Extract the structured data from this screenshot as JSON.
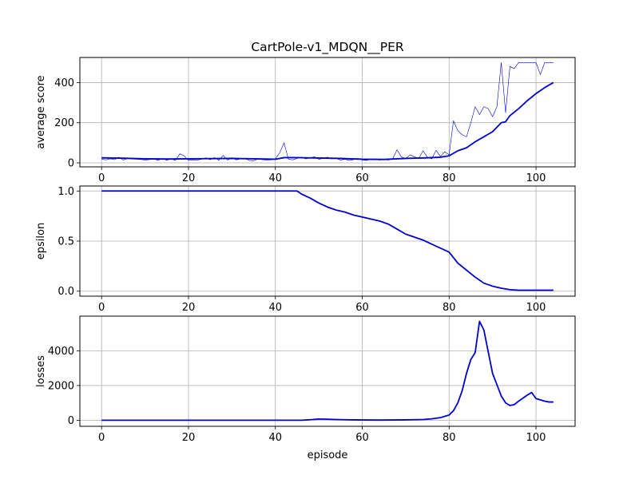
{
  "chart_data": {
    "type": "line",
    "title": "CartPole-v1_MDQN__PER",
    "xlabel": "episode",
    "x_ticks": [
      0,
      20,
      40,
      60,
      80,
      100
    ],
    "xlim": [
      -5,
      109
    ],
    "grid": true,
    "panels": [
      {
        "id": "score",
        "ylabel": "average score",
        "ylim": [
          -20,
          525
        ],
        "y_ticks": [
          0,
          200,
          400
        ],
        "series": [
          {
            "style": "raw",
            "color": "#0000cc",
            "x": [
              0,
              1,
              2,
              3,
              4,
              5,
              6,
              7,
              8,
              9,
              10,
              11,
              12,
              13,
              14,
              15,
              16,
              17,
              18,
              19,
              20,
              21,
              22,
              23,
              24,
              25,
              26,
              27,
              28,
              29,
              30,
              31,
              32,
              33,
              34,
              35,
              36,
              37,
              38,
              39,
              40,
              41,
              42,
              43,
              44,
              45,
              46,
              47,
              48,
              49,
              50,
              51,
              52,
              53,
              54,
              55,
              56,
              57,
              58,
              59,
              60,
              61,
              62,
              63,
              64,
              65,
              66,
              67,
              68,
              69,
              70,
              71,
              72,
              73,
              74,
              75,
              76,
              77,
              78,
              79,
              80,
              81,
              82,
              83,
              84,
              85,
              86,
              87,
              88,
              89,
              90,
              91,
              92,
              93,
              94,
              95,
              96,
              97,
              98,
              99,
              100,
              101,
              102,
              103,
              104
            ],
            "y": [
              18,
              15,
              20,
              16,
              28,
              14,
              22,
              19,
              18,
              17,
              14,
              16,
              20,
              12,
              22,
              13,
              20,
              12,
              45,
              35,
              12,
              15,
              14,
              18,
              25,
              16,
              26,
              13,
              37,
              14,
              26,
              15,
              20,
              22,
              12,
              10,
              20,
              16,
              14,
              15,
              20,
              50,
              100,
              18,
              15,
              22,
              28,
              20,
              25,
              30,
              18,
              22,
              28,
              20,
              22,
              14,
              18,
              12,
              16,
              22,
              14,
              12,
              18,
              16,
              14,
              16,
              14,
              20,
              65,
              30,
              20,
              40,
              30,
              22,
              60,
              28,
              20,
              62,
              32,
              55,
              40,
              210,
              160,
              140,
              130,
              200,
              280,
              240,
              280,
              270,
              230,
              280,
              500,
              250,
              480,
              470,
              500,
              500,
              500,
              500,
              500,
              440,
              500,
              500,
              500
            ]
          },
          {
            "style": "mean",
            "color": "#0000cc",
            "x": [
              0,
              5,
              10,
              15,
              20,
              25,
              30,
              35,
              40,
              42,
              45,
              50,
              55,
              60,
              65,
              70,
              75,
              78,
              80,
              82,
              84,
              86,
              88,
              90,
              92,
              93,
              94,
              96,
              98,
              100,
              102,
              104
            ],
            "y": [
              25,
              23,
              20,
              19,
              20,
              21,
              22,
              20,
              18,
              26,
              26,
              24,
              22,
              18,
              17,
              22,
              25,
              28,
              35,
              60,
              75,
              105,
              130,
              155,
              200,
              205,
              235,
              270,
              310,
              345,
              375,
              400
            ]
          }
        ]
      },
      {
        "id": "epsilon",
        "ylabel": "epsilon",
        "ylim": [
          -0.05,
          1.05
        ],
        "y_ticks": [
          0.0,
          0.5,
          1.0
        ],
        "y_tick_labels": [
          "0.0",
          "0.5",
          "1.0"
        ],
        "series": [
          {
            "style": "mean",
            "color": "#0000cc",
            "x": [
              0,
              10,
              20,
              30,
              40,
              45,
              46,
              48,
              50,
              52,
              54,
              56,
              58,
              60,
              62,
              64,
              66,
              68,
              70,
              72,
              74,
              76,
              78,
              80,
              82,
              84,
              86,
              88,
              90,
              92,
              94,
              96,
              98,
              100,
              104
            ],
            "y": [
              1.0,
              1.0,
              1.0,
              1.0,
              1.0,
              1.0,
              0.97,
              0.93,
              0.88,
              0.84,
              0.81,
              0.79,
              0.76,
              0.74,
              0.72,
              0.7,
              0.67,
              0.62,
              0.57,
              0.54,
              0.51,
              0.47,
              0.43,
              0.39,
              0.28,
              0.21,
              0.14,
              0.08,
              0.05,
              0.03,
              0.015,
              0.01,
              0.01,
              0.01,
              0.01
            ]
          }
        ]
      },
      {
        "id": "losses",
        "ylabel": "losses",
        "ylim": [
          -350,
          6000
        ],
        "y_ticks": [
          0,
          2000,
          4000
        ],
        "series": [
          {
            "style": "mean",
            "color": "#0000cc",
            "x": [
              0,
              10,
              20,
              30,
              40,
              46,
              48,
              50,
              52,
              54,
              56,
              58,
              60,
              64,
              70,
              74,
              76,
              78,
              80,
              81,
              82,
              83,
              84,
              85,
              86,
              87,
              88,
              90,
              92,
              93,
              94,
              95,
              96,
              98,
              99,
              100,
              102,
              103,
              104
            ],
            "y": [
              0,
              0,
              0,
              0,
              0,
              0,
              30,
              70,
              60,
              40,
              30,
              20,
              15,
              10,
              20,
              40,
              80,
              150,
              300,
              550,
              1000,
              1700,
              2700,
              3500,
              3900,
              5700,
              5200,
              2700,
              1400,
              1000,
              850,
              900,
              1100,
              1450,
              1600,
              1250,
              1100,
              1050,
              1050
            ]
          }
        ]
      }
    ]
  }
}
